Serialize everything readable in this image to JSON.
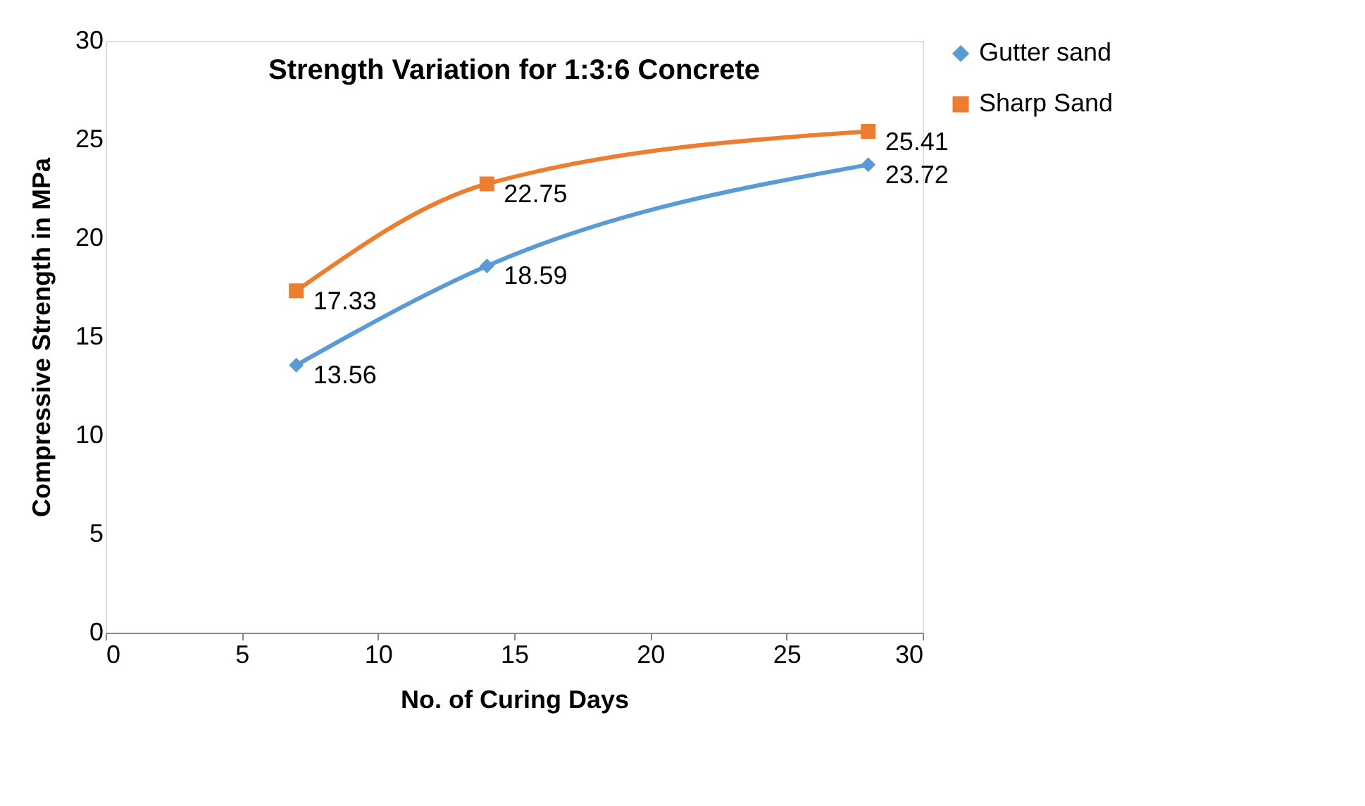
{
  "chart_data": {
    "type": "line",
    "title": "Strength Variation for 1:3:6 Concrete",
    "xlabel": "No. of Curing Days",
    "ylabel": "Compressive Strength in MPa",
    "x": [
      7,
      14,
      28
    ],
    "series": [
      {
        "name": "Gutter sand",
        "color": "#5b9bd5",
        "marker": "diamond",
        "values": [
          13.56,
          18.59,
          23.72
        ]
      },
      {
        "name": "Sharp Sand",
        "color": "#ed7d31",
        "marker": "square",
        "values": [
          17.33,
          22.75,
          25.41
        ]
      }
    ],
    "xlim": [
      0,
      30
    ],
    "xticks": [
      0,
      5,
      10,
      15,
      20,
      25,
      30
    ],
    "ylim": [
      0,
      30
    ],
    "yticks": [
      0,
      5,
      10,
      15,
      20,
      25,
      30
    ],
    "grid": false,
    "legend": "right",
    "data_labels": true,
    "line_style": "solid"
  }
}
